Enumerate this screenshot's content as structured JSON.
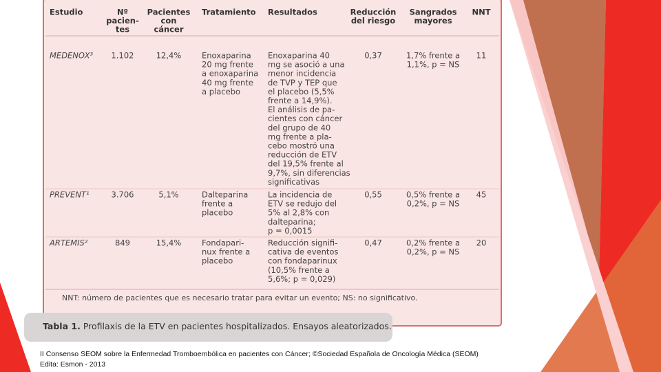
{
  "table": {
    "header": [
      [
        "Estudio"
      ],
      [
        "Nº",
        "pacien-",
        "tes"
      ],
      [
        "Pacientes",
        "con",
        "cáncer"
      ],
      [
        "Tratamiento"
      ],
      [
        "Resultados"
      ],
      [
        "Reducción",
        "del riesgo"
      ],
      [
        "Sangrados",
        "mayores"
      ],
      [
        "NNT"
      ]
    ],
    "rows": [
      [
        [
          "MEDENOX³"
        ],
        [
          "1.102"
        ],
        [
          "12,4%"
        ],
        [
          "Enoxaparina",
          "20 mg frente",
          "a enoxaparina",
          "40 mg frente",
          "a placebo"
        ],
        [
          "Enoxaparina 40",
          "mg se asoció a una",
          "menor incidencia",
          "de TVP y TEP que",
          "el placebo (5,5%",
          "frente a 14,9%).",
          "El análisis de pa-",
          "cientes con cáncer",
          "del grupo de 40",
          "mg frente a pla-",
          "cebo mostró una",
          "reducción de ETV",
          "del 19,5% frente al",
          "9,7%, sin diferencias",
          "significativas"
        ],
        [
          "0,37"
        ],
        [
          "1,7% frente a",
          "1,1%, p = NS"
        ],
        [
          "11"
        ]
      ],
      [
        [
          "PREVENT¹"
        ],
        [
          "3.706"
        ],
        [
          "5,1%"
        ],
        [
          "Dalteparina",
          "frente a",
          "placebo"
        ],
        [
          "La incidencia de",
          "ETV se redujo del",
          "5% al 2,8% con",
          "dalteparina;",
          "p = 0,0015"
        ],
        [
          "0,55"
        ],
        [
          "0,5% frente a",
          "0,2%, p = NS"
        ],
        [
          "45"
        ]
      ],
      [
        [
          "ARTEMIS²"
        ],
        [
          "849"
        ],
        [
          "15,4%"
        ],
        [
          "Fondapari-",
          "nux frente a",
          "placebo"
        ],
        [
          "Reducción signifi-",
          "cativa de eventos",
          "con fondaparinux",
          "(10,5% frente a",
          "5,6%; p = 0,029)"
        ],
        [
          "0,47"
        ],
        [
          "0,2% frente a",
          "0,2%, p = NS"
        ],
        [
          "20"
        ]
      ]
    ],
    "footnote": "NNT: número de pacientes que es necesario tratar para evitar un evento; NS: no significativo.",
    "caption_label": "Tabla 1.",
    "caption": "Profilaxis de la ETV en pacientes hospitalizados. Ensayos aleatorizados."
  },
  "footer": [
    "II Consenso SEOM sobre la Enfermedad Tromboembólica en pacientes con Cáncer; ©Sociedad Española de Oncología Médica (SEOM)",
    "Edita: Esmon - 2013"
  ]
}
